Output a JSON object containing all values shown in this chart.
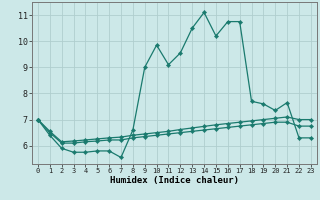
{
  "xlabel": "Humidex (Indice chaleur)",
  "x": [
    0,
    1,
    2,
    3,
    4,
    5,
    6,
    7,
    8,
    9,
    10,
    11,
    12,
    13,
    14,
    15,
    16,
    17,
    18,
    19,
    20,
    21,
    22,
    23
  ],
  "line1": [
    7.0,
    6.4,
    5.9,
    5.75,
    5.75,
    5.8,
    5.8,
    5.55,
    6.6,
    9.0,
    9.85,
    9.1,
    9.55,
    10.5,
    11.1,
    10.2,
    10.75,
    10.75,
    7.7,
    7.6,
    7.35,
    7.65,
    6.3,
    6.3
  ],
  "line2": [
    7.0,
    6.55,
    6.15,
    6.18,
    6.22,
    6.26,
    6.3,
    6.33,
    6.4,
    6.45,
    6.5,
    6.55,
    6.62,
    6.68,
    6.74,
    6.8,
    6.85,
    6.9,
    6.95,
    7.0,
    7.05,
    7.1,
    7.0,
    7.0
  ],
  "line3": [
    7.0,
    6.5,
    6.1,
    6.1,
    6.15,
    6.18,
    6.22,
    6.22,
    6.3,
    6.35,
    6.4,
    6.45,
    6.5,
    6.55,
    6.6,
    6.65,
    6.7,
    6.75,
    6.8,
    6.85,
    6.9,
    6.9,
    6.75,
    6.75
  ],
  "line_color": "#1a7a6e",
  "bg_color": "#cce8e8",
  "grid_color": "#b0cece",
  "ylim": [
    5.3,
    11.5
  ],
  "yticks": [
    6,
    7,
    8,
    9,
    10,
    11
  ],
  "xlim": [
    -0.5,
    23.5
  ]
}
